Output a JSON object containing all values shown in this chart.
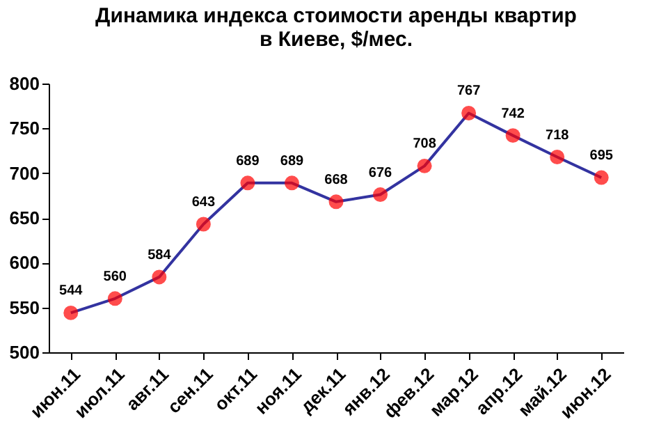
{
  "chart_data": {
    "type": "line",
    "title": "Динамика индекса стоимости аренды квартир\nв Киеве, $/мес.",
    "categories": [
      "июн.11",
      "июл.11",
      "авг.11",
      "сен.11",
      "окт.11",
      "ноя.11",
      "дек.11",
      "янв.12",
      "фев.12",
      "мар.12",
      "апр.12",
      "май.12",
      "июн.12"
    ],
    "series": [
      {
        "color": "#3333a0",
        "colors": [
          "#ff0000",
          "#ff0000",
          "#ff0000",
          "#ff0000",
          "#ff0000",
          "#ff0000",
          "#ff0000",
          "#ff0000",
          "#ff0000",
          "#ff0000",
          "#ff0000",
          "#ff0000",
          "#ff0000"
        ],
        "values": [
          544,
          560,
          584,
          643,
          689,
          689,
          668,
          676,
          708,
          767,
          742,
          718,
          695
        ]
      }
    ],
    "ylim": [
      500,
      800
    ],
    "yticks": [
      500,
      550,
      600,
      650,
      700,
      750,
      800
    ],
    "marker": "circle",
    "line_style": "solid",
    "data_labels": true,
    "grid": false
  }
}
